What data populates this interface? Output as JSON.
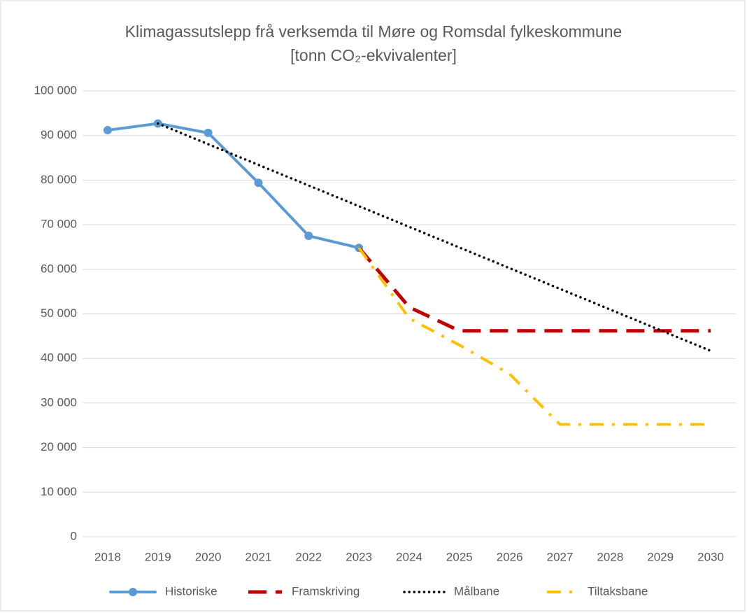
{
  "chart_data": {
    "type": "line",
    "title": [
      "Klimagassutslepp frå verksemda til Møre og Romsdal fylkeskommune",
      "[tonn CO₂-ekvivalenter]"
    ],
    "categories": [
      "2018",
      "2019",
      "2020",
      "2021",
      "2022",
      "2023",
      "2024",
      "2025",
      "2026",
      "2027",
      "2028",
      "2029",
      "2030"
    ],
    "series": [
      {
        "name": "Historiske",
        "color": "#5b9bd5",
        "style": "solid",
        "marker": "circle",
        "values": [
          91200,
          92700,
          90600,
          79400,
          67500,
          64800,
          null,
          null,
          null,
          null,
          null,
          null,
          null
        ]
      },
      {
        "name": "Framskriving",
        "color": "#c00000",
        "style": "dash",
        "values": [
          null,
          null,
          null,
          null,
          null,
          64800,
          51500,
          46200,
          46200,
          46200,
          46200,
          46200,
          46200
        ]
      },
      {
        "name": "Målbane",
        "color": "#000000",
        "style": "dot",
        "values": [
          null,
          92700,
          88064,
          83427,
          78791,
          74155,
          69518,
          64882,
          60245,
          55609,
          50973,
          46336,
          41700
        ]
      },
      {
        "name": "Tiltaksbane",
        "color": "#ffc000",
        "style": "dashdot",
        "values": [
          null,
          null,
          null,
          null,
          null,
          64800,
          49000,
          43000,
          36500,
          25200,
          25200,
          25200,
          25200
        ]
      }
    ],
    "ylim": [
      0,
      100000
    ],
    "yticks": [
      0,
      {
        "value": 10000,
        "label": "10 000"
      },
      {
        "value": 20000,
        "label": "20 000"
      },
      {
        "value": 30000,
        "label": "30 000"
      },
      {
        "value": 40000,
        "label": "40 000"
      },
      {
        "value": 50000,
        "label": "50 000"
      },
      {
        "value": 60000,
        "label": "60 000"
      },
      {
        "value": 70000,
        "label": "70 000"
      },
      {
        "value": 80000,
        "label": "80 000"
      },
      {
        "value": 90000,
        "label": "90 000"
      },
      {
        "value": 100000,
        "label": "100 000"
      }
    ],
    "grid": true,
    "legend": "bottom"
  }
}
